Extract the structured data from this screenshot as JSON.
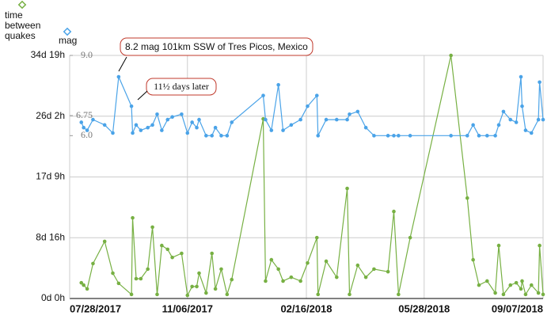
{
  "chart_data": {
    "type": "line",
    "x": [
      "2017-08-07",
      "2017-08-09",
      "2017-08-12",
      "2017-08-17",
      "2017-08-27",
      "2017-09-03",
      "2017-09-08",
      "2017-09-19",
      "2017-09-20",
      "2017-09-23",
      "2017-09-27",
      "2017-10-03",
      "2017-10-07",
      "2017-10-11",
      "2017-10-15",
      "2017-10-20",
      "2017-10-24",
      "2017-11-01",
      "2017-11-06",
      "2017-11-10",
      "2017-11-14",
      "2017-11-16",
      "2017-11-22",
      "2017-11-27",
      "2017-11-30",
      "2017-12-05",
      "2017-12-10",
      "2017-12-14",
      "2018-01-10",
      "2018-01-12",
      "2018-01-17",
      "2018-01-23",
      "2018-01-27",
      "2018-02-03",
      "2018-02-11",
      "2018-02-17",
      "2018-02-25",
      "2018-02-26",
      "2018-03-05",
      "2018-03-14",
      "2018-03-23",
      "2018-03-25",
      "2018-04-01",
      "2018-04-08",
      "2018-04-15",
      "2018-04-27",
      "2018-05-02",
      "2018-05-06",
      "2018-05-16",
      "2018-06-20",
      "2018-07-04",
      "2018-07-09",
      "2018-07-14",
      "2018-07-21",
      "2018-07-28",
      "2018-07-31",
      "2018-08-04",
      "2018-08-10",
      "2018-08-15",
      "2018-08-19",
      "2018-08-20",
      "2018-08-23",
      "2018-08-28",
      "2018-09-03",
      "2018-09-04",
      "2018-09-07"
    ],
    "series": [
      {
        "name": "time between quakes",
        "color": "#77b043",
        "axis": "y",
        "values": [
          54,
          46,
          33,
          120,
          196,
          87,
          52,
          14,
          277,
          68,
          68,
          101,
          245,
          14,
          182,
          169,
          141,
          155,
          11,
          41,
          41,
          87,
          19,
          155,
          33,
          101,
          14,
          65,
          617,
          60,
          133,
          101,
          60,
          73,
          60,
          122,
          209,
          14,
          128,
          73,
          378,
          14,
          114,
          73,
          101,
          92,
          299,
          14,
          209,
          835,
          345,
          133,
          46,
          60,
          19,
          182,
          14,
          46,
          54,
          33,
          60,
          14,
          46,
          19,
          182,
          14
        ]
      },
      {
        "name": "mag",
        "color": "#4aa3e8",
        "axis": "y2",
        "values": [
          6.5,
          6.3,
          6.2,
          6.6,
          6.4,
          6.1,
          8.2,
          7.1,
          6.1,
          6.4,
          6.2,
          6.3,
          6.4,
          6.8,
          6.2,
          6.6,
          6.7,
          6.8,
          6.1,
          6.5,
          6.3,
          6.6,
          6.0,
          6.0,
          6.3,
          6.0,
          6.0,
          6.5,
          7.5,
          6.6,
          6.2,
          7.9,
          6.2,
          6.4,
          6.6,
          7.1,
          7.5,
          6.0,
          6.6,
          6.6,
          6.6,
          6.8,
          6.9,
          6.3,
          6.0,
          6.0,
          6.0,
          6.0,
          6.0,
          6.0,
          6.0,
          6.4,
          6.0,
          6.0,
          6.0,
          6.4,
          6.9,
          6.6,
          6.5,
          8.2,
          7.1,
          6.2,
          6.1,
          6.6,
          8.0,
          6.6
        ]
      }
    ],
    "xlim": [
      "2017-07-28",
      "2018-09-07"
    ],
    "xticks": [
      {
        "value": "2017-07-28",
        "label": "07/28/2017"
      },
      {
        "value": "2017-11-06",
        "label": "11/06/2017"
      },
      {
        "value": "2018-02-16",
        "label": "02/16/2018"
      },
      {
        "value": "2018-05-28",
        "label": "05/28/2018"
      },
      {
        "value": "2018-09-07",
        "label": "09/07/2018"
      }
    ],
    "ylim": [
      0,
      835
    ],
    "yticks": [
      {
        "value": 0,
        "label": "0d 0h"
      },
      {
        "value": 208.75,
        "label": "8d 16h"
      },
      {
        "value": 417.5,
        "label": "17d 9h"
      },
      {
        "value": 626.25,
        "label": "26d 2h"
      },
      {
        "value": 835,
        "label": "34d 19h"
      }
    ],
    "y2lim": [
      0,
      9
    ],
    "y2ticks": [
      {
        "value": 6,
        "label": "6.0"
      },
      6.75,
      {
        "value": 9,
        "label": "9.0"
      }
    ],
    "grid": true,
    "annotations": [
      "8.2 mag 101km SSW of Tres Picos, Mexico",
      "11½ days later"
    ]
  }
}
